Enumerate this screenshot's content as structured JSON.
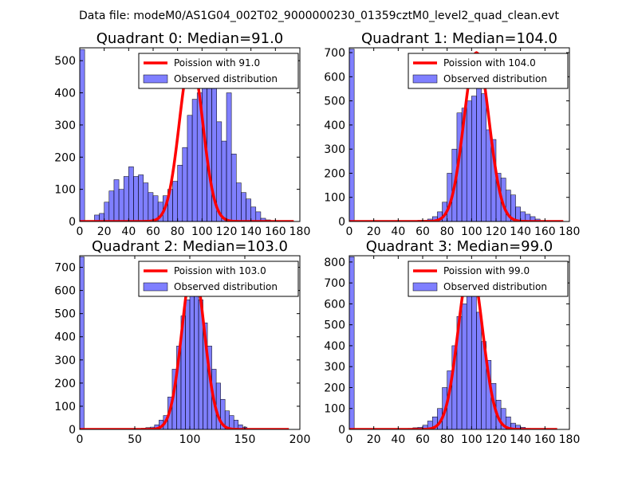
{
  "suptitle": "Data file: modeM0/AS1G04_002T02_9000000230_01359cztM0_level2_quad_clean.evt",
  "chart_data": [
    {
      "type": "bar",
      "title": "Quadrant 0: Median=91.0",
      "xlim": [
        0,
        180
      ],
      "ylim": [
        0,
        540
      ],
      "xticks": [
        0,
        20,
        40,
        60,
        80,
        100,
        120,
        140,
        160,
        180
      ],
      "yticks": [
        0,
        100,
        200,
        300,
        400,
        500
      ],
      "bin_width": 4,
      "bins": [
        [
          0,
          535
        ],
        [
          4,
          0
        ],
        [
          8,
          0
        ],
        [
          12,
          20
        ],
        [
          16,
          25
        ],
        [
          20,
          60
        ],
        [
          24,
          95
        ],
        [
          28,
          130
        ],
        [
          32,
          100
        ],
        [
          36,
          140
        ],
        [
          40,
          170
        ],
        [
          44,
          140
        ],
        [
          48,
          145
        ],
        [
          52,
          120
        ],
        [
          56,
          90
        ],
        [
          60,
          80
        ],
        [
          64,
          60
        ],
        [
          68,
          80
        ],
        [
          72,
          100
        ],
        [
          76,
          125
        ],
        [
          80,
          175
        ],
        [
          84,
          230
        ],
        [
          88,
          330
        ],
        [
          92,
          380
        ],
        [
          96,
          400
        ],
        [
          100,
          440
        ],
        [
          104,
          460
        ],
        [
          108,
          420
        ],
        [
          112,
          310
        ],
        [
          116,
          250
        ],
        [
          120,
          400
        ],
        [
          124,
          210
        ],
        [
          128,
          120
        ],
        [
          132,
          90
        ],
        [
          136,
          70
        ],
        [
          140,
          45
        ],
        [
          144,
          30
        ],
        [
          148,
          10
        ],
        [
          152,
          5
        ]
      ],
      "curve": {
        "mean": 91,
        "peak": 510,
        "x_end": 175
      },
      "legend": {
        "line_label": "Poission with 91.0",
        "bar_label": "Observed distribution"
      }
    },
    {
      "type": "bar",
      "title": "Quadrant 1: Median=104.0",
      "xlim": [
        0,
        180
      ],
      "ylim": [
        0,
        720
      ],
      "xticks": [
        0,
        20,
        40,
        60,
        80,
        100,
        120,
        140,
        160,
        180
      ],
      "yticks": [
        0,
        100,
        200,
        300,
        400,
        500,
        600,
        700
      ],
      "bin_width": 4,
      "bins": [
        [
          0,
          715
        ],
        [
          56,
          5
        ],
        [
          60,
          5
        ],
        [
          64,
          10
        ],
        [
          68,
          20
        ],
        [
          72,
          40
        ],
        [
          76,
          80
        ],
        [
          80,
          200
        ],
        [
          84,
          300
        ],
        [
          88,
          450
        ],
        [
          92,
          470
        ],
        [
          96,
          500
        ],
        [
          100,
          520
        ],
        [
          104,
          650
        ],
        [
          108,
          530
        ],
        [
          112,
          380
        ],
        [
          116,
          340
        ],
        [
          120,
          200
        ],
        [
          124,
          180
        ],
        [
          128,
          130
        ],
        [
          132,
          110
        ],
        [
          136,
          60
        ],
        [
          140,
          40
        ],
        [
          144,
          30
        ],
        [
          148,
          20
        ],
        [
          152,
          10
        ]
      ],
      "curve": {
        "mean": 104,
        "peak": 700,
        "x_end": 175
      },
      "legend": {
        "line_label": "Poission with 104.0",
        "bar_label": "Observed distribution"
      }
    },
    {
      "type": "bar",
      "title": "Quadrant 2: Median=103.0",
      "xlim": [
        0,
        200
      ],
      "ylim": [
        0,
        750
      ],
      "xticks": [
        0,
        50,
        100,
        150,
        200
      ],
      "yticks": [
        0,
        100,
        200,
        300,
        400,
        500,
        600,
        700
      ],
      "bin_width": 4,
      "bins": [
        [
          0,
          745
        ],
        [
          48,
          3
        ],
        [
          56,
          5
        ],
        [
          60,
          8
        ],
        [
          64,
          10
        ],
        [
          68,
          20
        ],
        [
          72,
          40
        ],
        [
          76,
          60
        ],
        [
          80,
          140
        ],
        [
          84,
          260
        ],
        [
          88,
          360
        ],
        [
          92,
          490
        ],
        [
          96,
          560
        ],
        [
          100,
          580
        ],
        [
          104,
          620
        ],
        [
          108,
          560
        ],
        [
          112,
          460
        ],
        [
          116,
          360
        ],
        [
          120,
          260
        ],
        [
          124,
          200
        ],
        [
          128,
          130
        ],
        [
          132,
          80
        ],
        [
          136,
          60
        ],
        [
          140,
          40
        ],
        [
          144,
          20
        ],
        [
          148,
          10
        ]
      ],
      "curve": {
        "mean": 103,
        "peak": 710,
        "x_end": 190
      },
      "legend": {
        "line_label": "Poission with 103.0",
        "bar_label": "Observed distribution"
      }
    },
    {
      "type": "bar",
      "title": "Quadrant 3: Median=99.0",
      "xlim": [
        0,
        180
      ],
      "ylim": [
        0,
        830
      ],
      "xticks": [
        0,
        20,
        40,
        60,
        80,
        100,
        120,
        140,
        160,
        180
      ],
      "yticks": [
        0,
        100,
        200,
        300,
        400,
        500,
        600,
        700,
        800
      ],
      "bin_width": 4,
      "bins": [
        [
          0,
          825
        ],
        [
          44,
          3
        ],
        [
          48,
          5
        ],
        [
          52,
          8
        ],
        [
          56,
          10
        ],
        [
          60,
          20
        ],
        [
          64,
          40
        ],
        [
          68,
          60
        ],
        [
          72,
          100
        ],
        [
          76,
          200
        ],
        [
          80,
          280
        ],
        [
          84,
          400
        ],
        [
          88,
          540
        ],
        [
          92,
          600
        ],
        [
          96,
          660
        ],
        [
          100,
          770
        ],
        [
          104,
          560
        ],
        [
          108,
          420
        ],
        [
          112,
          330
        ],
        [
          116,
          220
        ],
        [
          120,
          140
        ],
        [
          124,
          100
        ],
        [
          128,
          60
        ],
        [
          132,
          30
        ],
        [
          136,
          20
        ],
        [
          140,
          10
        ],
        [
          144,
          5
        ]
      ],
      "curve": {
        "mean": 99,
        "peak": 790,
        "x_end": 170
      },
      "legend": {
        "line_label": "Poission with 99.0",
        "bar_label": "Observed distribution"
      }
    }
  ]
}
